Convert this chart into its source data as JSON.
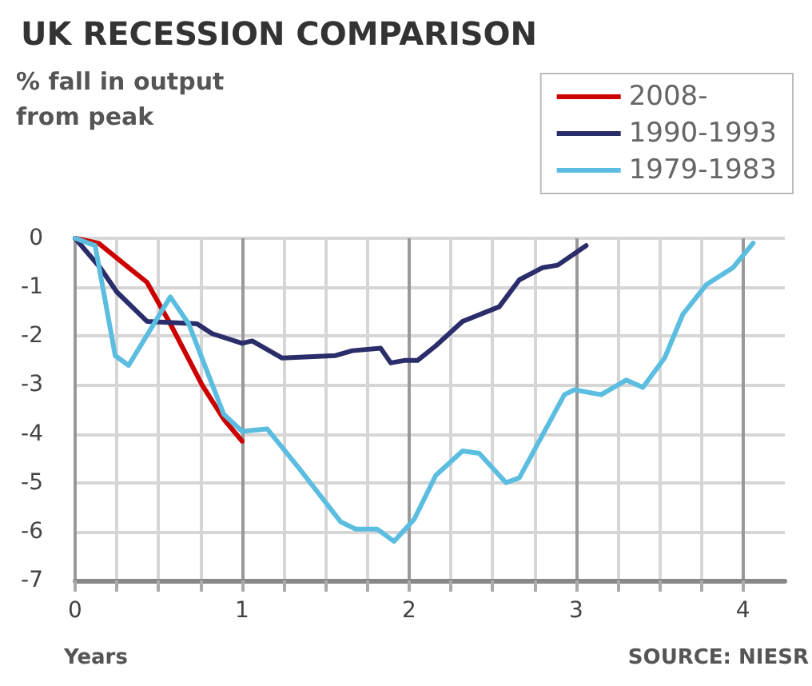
{
  "chart_data": {
    "type": "line",
    "title": "UK RECESSION COMPARISON",
    "ylabel": "% fall in output from peak",
    "xlabel": "Years",
    "annotations": [
      "SOURCE: NIESR"
    ],
    "series": [
      {
        "name": "2008-",
        "color": "#cc0000",
        "x": [
          0,
          0.14,
          0.32,
          0.43,
          0.57,
          0.76,
          0.89,
          1.0
        ],
        "values": [
          0,
          -0.1,
          -0.6,
          -0.9,
          -1.75,
          -3.0,
          -3.7,
          -4.15
        ]
      },
      {
        "name": "1990-1993",
        "color": "#2b2d6b",
        "x": [
          0,
          0.15,
          0.25,
          0.43,
          0.73,
          0.82,
          1.0,
          1.06,
          1.24,
          1.56,
          1.66,
          1.83,
          1.89,
          1.97,
          2.05,
          2.16,
          2.32,
          2.54,
          2.66,
          2.8,
          2.89,
          3.06
        ],
        "values": [
          0,
          -0.6,
          -1.1,
          -1.7,
          -1.75,
          -1.95,
          -2.15,
          -2.1,
          -2.45,
          -2.4,
          -2.3,
          -2.25,
          -2.55,
          -2.5,
          -2.5,
          -2.2,
          -1.7,
          -1.4,
          -0.85,
          -0.6,
          -0.55,
          -0.15
        ]
      },
      {
        "name": "1979-1983",
        "color": "#5bbde0",
        "x": [
          0,
          0.12,
          0.24,
          0.32,
          0.57,
          0.68,
          0.89,
          1.0,
          1.15,
          1.34,
          1.59,
          1.68,
          1.81,
          1.91,
          2.03,
          2.16,
          2.32,
          2.42,
          2.58,
          2.66,
          2.93,
          2.99,
          3.15,
          3.3,
          3.4,
          3.53,
          3.64,
          3.78,
          3.94,
          4.06
        ],
        "values": [
          0,
          -0.15,
          -2.4,
          -2.6,
          -1.2,
          -1.75,
          -3.6,
          -3.95,
          -3.9,
          -4.7,
          -5.8,
          -5.95,
          -5.95,
          -6.2,
          -5.75,
          -4.85,
          -4.35,
          -4.4,
          -5.0,
          -4.9,
          -3.2,
          -3.1,
          -3.2,
          -2.9,
          -3.05,
          -2.45,
          -1.55,
          -0.95,
          -0.6,
          -0.1
        ]
      }
    ],
    "xlim": [
      0,
      4.25
    ],
    "xticks": [
      0,
      {
        "value": 0.25,
        "label": null
      },
      {
        "value": 0.5,
        "label": null
      },
      {
        "value": 0.75,
        "label": null
      },
      1,
      {
        "value": 1.25,
        "label": null
      },
      {
        "value": 1.5,
        "label": null
      },
      {
        "value": 1.75,
        "label": null
      },
      2,
      {
        "value": 2.25,
        "label": null
      },
      {
        "value": 2.5,
        "label": null
      },
      {
        "value": 2.75,
        "label": null
      },
      3,
      {
        "value": 3.25,
        "label": null
      },
      {
        "value": 3.5,
        "label": null
      },
      {
        "value": 3.75,
        "label": null
      },
      4
    ],
    "ylim": [
      -7,
      0
    ],
    "yticks": [
      -7,
      -6,
      -5,
      -4,
      -3,
      -2,
      -1,
      0
    ],
    "grid": true,
    "legend": "top right",
    "marker": "none",
    "line_style": "solid"
  }
}
